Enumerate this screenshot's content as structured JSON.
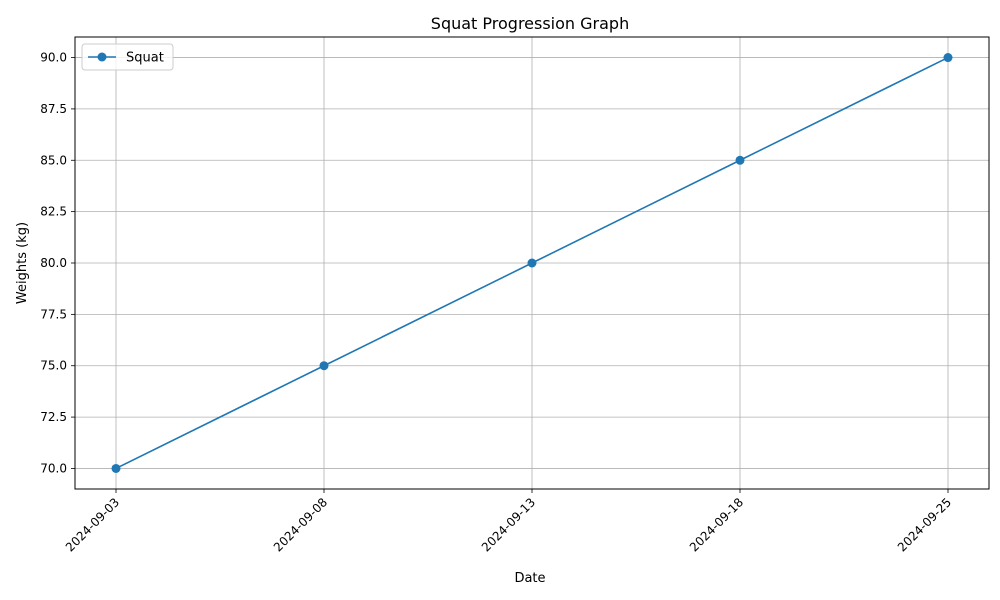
{
  "chart_data": {
    "type": "line",
    "title": "Squat Progression Graph",
    "xlabel": "Date",
    "ylabel": "Weights (kg)",
    "categories": [
      "2024-09-03",
      "2024-09-08",
      "2024-09-13",
      "2024-09-18",
      "2024-09-25"
    ],
    "series": [
      {
        "name": "Squat",
        "values": [
          70.0,
          75.0,
          80.0,
          85.0,
          90.0
        ],
        "color": "#1f77b4",
        "marker": "circle"
      }
    ],
    "yticks": [
      "70.0",
      "72.5",
      "75.0",
      "77.5",
      "80.0",
      "82.5",
      "85.0",
      "87.5",
      "90.0"
    ],
    "ylim": [
      69.0,
      91.0
    ],
    "grid": true,
    "legend_position": "top-left",
    "xtick_rotation_deg": 45
  }
}
